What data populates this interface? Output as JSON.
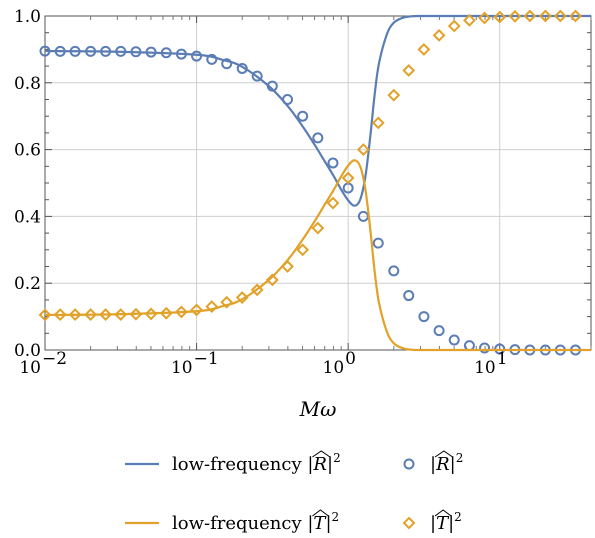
{
  "chart_data": {
    "type": "scatter",
    "xlabel": "Mω",
    "ylabel": "",
    "xscale": "log",
    "xlim": [
      0.01,
      40
    ],
    "ylim": [
      0,
      1
    ],
    "grid": true,
    "legend_position": "bottom",
    "x_ticks": [
      {
        "value": 0.01,
        "base": "10",
        "exp": "−2"
      },
      {
        "value": 0.1,
        "base": "10",
        "exp": "−1"
      },
      {
        "value": 1,
        "base": "10",
        "exp": "0"
      },
      {
        "value": 10,
        "base": "10",
        "exp": "1"
      }
    ],
    "y_ticks": [
      {
        "value": 0.0,
        "label": "0.0"
      },
      {
        "value": 0.2,
        "label": "0.2"
      },
      {
        "value": 0.4,
        "label": "0.4"
      },
      {
        "value": 0.6,
        "label": "0.6"
      },
      {
        "value": 0.8,
        "label": "0.8"
      },
      {
        "value": 1.0,
        "label": "1.0"
      }
    ],
    "series": [
      {
        "name": "low-frequency |R̂|²",
        "legend_prefix": "low-frequency ",
        "legend_symbol": "R",
        "style": "line",
        "color": "#5b7db5",
        "x": [
          0.01,
          0.03,
          0.1,
          0.15,
          0.2,
          0.3,
          0.4,
          0.5,
          0.6,
          0.7,
          0.8,
          0.9,
          1.0,
          1.1,
          1.2,
          1.3,
          1.4,
          1.5,
          1.6,
          1.8,
          2.0,
          2.3,
          2.6,
          3.0,
          4.0,
          6.0,
          10.0,
          20.0,
          40.0
        ],
        "y": [
          0.895,
          0.893,
          0.884,
          0.868,
          0.848,
          0.79,
          0.73,
          0.67,
          0.615,
          0.565,
          0.522,
          0.48,
          0.448,
          0.432,
          0.45,
          0.52,
          0.64,
          0.77,
          0.86,
          0.945,
          0.98,
          0.995,
          0.999,
          1.0,
          1.0,
          1.0,
          1.0,
          1.0,
          1.0
        ]
      },
      {
        "name": "|R̂|²",
        "legend_prefix": "",
        "legend_symbol": "R",
        "style": "circle",
        "color": "#5b7db5",
        "x": [
          0.01,
          0.0126,
          0.0158,
          0.02,
          0.0251,
          0.0316,
          0.0398,
          0.0501,
          0.0631,
          0.0794,
          0.1,
          0.126,
          0.158,
          0.2,
          0.251,
          0.316,
          0.398,
          0.501,
          0.631,
          0.794,
          1.0,
          1.26,
          1.58,
          2.0,
          2.51,
          3.16,
          3.98,
          5.01,
          6.31,
          7.94,
          10.0,
          12.6,
          15.8,
          20.0,
          25.1,
          31.6
        ],
        "y": [
          0.895,
          0.894,
          0.894,
          0.894,
          0.894,
          0.894,
          0.893,
          0.892,
          0.89,
          0.886,
          0.88,
          0.87,
          0.857,
          0.843,
          0.82,
          0.79,
          0.75,
          0.7,
          0.635,
          0.56,
          0.485,
          0.4,
          0.32,
          0.237,
          0.163,
          0.1,
          0.058,
          0.03,
          0.013,
          0.006,
          0.003,
          0.001,
          0.0,
          0.0,
          0.0,
          0.0
        ]
      },
      {
        "name": "low-frequency |T̂|²",
        "legend_prefix": "low-frequency ",
        "legend_symbol": "T",
        "style": "line",
        "color": "#e2a128",
        "x": [
          0.01,
          0.03,
          0.1,
          0.15,
          0.2,
          0.3,
          0.4,
          0.5,
          0.6,
          0.7,
          0.8,
          0.9,
          1.0,
          1.1,
          1.2,
          1.3,
          1.4,
          1.5,
          1.6,
          1.8,
          2.0,
          2.3,
          2.6,
          3.0,
          4.0,
          6.0,
          10.0,
          20.0,
          40.0
        ],
        "y": [
          0.105,
          0.107,
          0.116,
          0.132,
          0.152,
          0.21,
          0.27,
          0.33,
          0.385,
          0.435,
          0.478,
          0.52,
          0.552,
          0.568,
          0.55,
          0.48,
          0.36,
          0.23,
          0.14,
          0.055,
          0.02,
          0.005,
          0.001,
          0.0,
          0.0,
          0.0,
          0.0,
          0.0,
          0.0
        ]
      },
      {
        "name": "|T̂|²",
        "legend_prefix": "",
        "legend_symbol": "T",
        "style": "diamond",
        "color": "#e2a128",
        "x": [
          0.01,
          0.0126,
          0.0158,
          0.02,
          0.0251,
          0.0316,
          0.0398,
          0.0501,
          0.0631,
          0.0794,
          0.1,
          0.126,
          0.158,
          0.2,
          0.251,
          0.316,
          0.398,
          0.501,
          0.631,
          0.794,
          1.0,
          1.26,
          1.58,
          2.0,
          2.51,
          3.16,
          3.98,
          5.01,
          6.31,
          7.94,
          10.0,
          12.6,
          15.8,
          20.0,
          25.1,
          31.6
        ],
        "y": [
          0.105,
          0.106,
          0.106,
          0.106,
          0.106,
          0.106,
          0.107,
          0.108,
          0.11,
          0.114,
          0.12,
          0.13,
          0.143,
          0.157,
          0.18,
          0.21,
          0.25,
          0.3,
          0.365,
          0.44,
          0.515,
          0.6,
          0.68,
          0.763,
          0.837,
          0.9,
          0.942,
          0.97,
          0.987,
          0.994,
          0.997,
          0.999,
          1.0,
          1.0,
          1.0,
          1.0
        ]
      }
    ]
  }
}
